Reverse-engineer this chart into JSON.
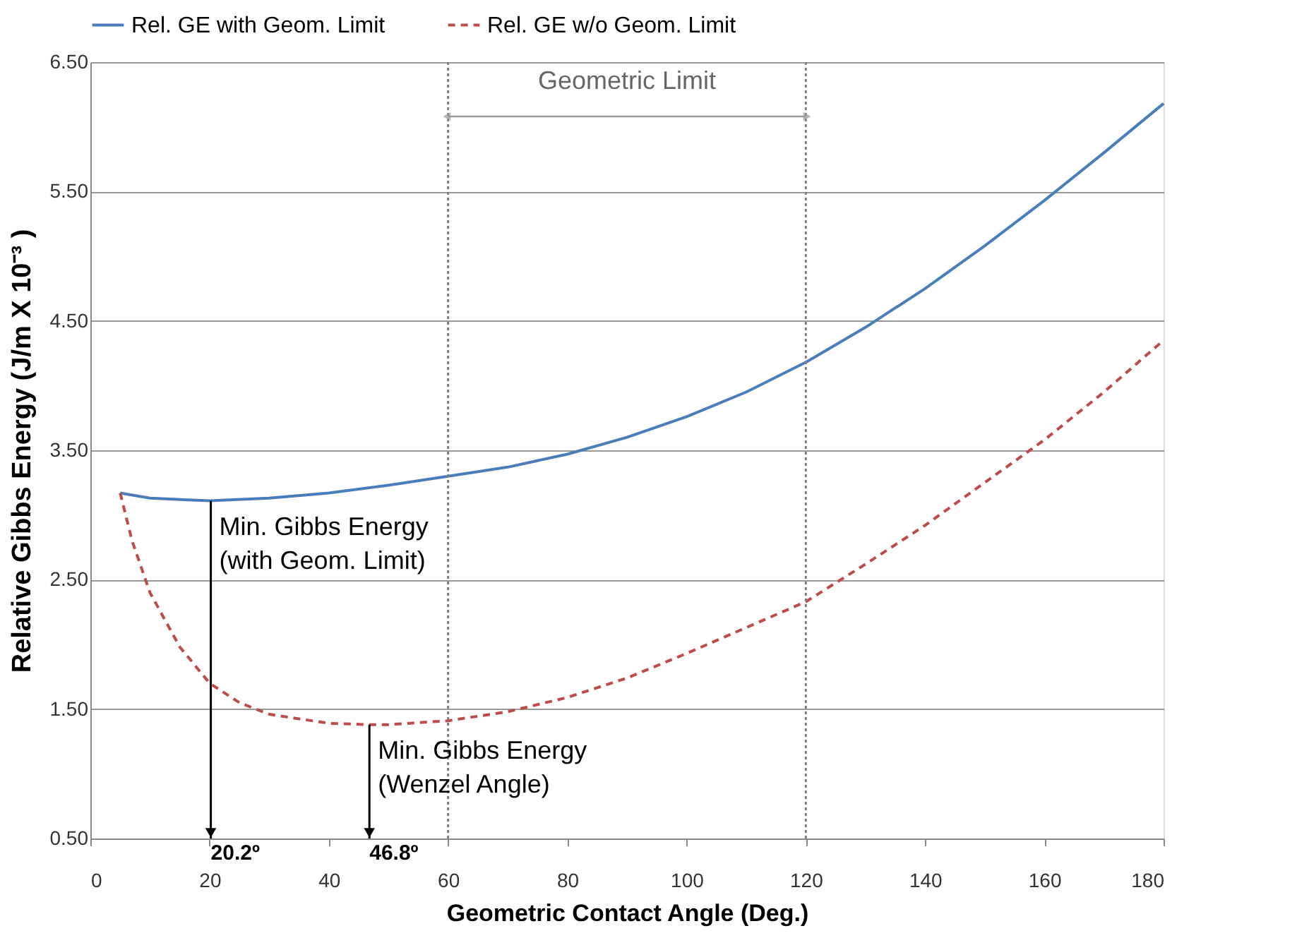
{
  "chart_data": {
    "type": "line",
    "xlabel": "Geometric Contact Angle (Deg.)",
    "ylabel": "Relative Gibbs Energy (J/m X 10⁻³ )",
    "xlim": [
      0,
      180
    ],
    "xticks": [
      0,
      20,
      40,
      60,
      80,
      100,
      120,
      140,
      160,
      180
    ],
    "ylim": [
      0.5,
      6.5
    ],
    "yticks": [
      {
        "value": 0.5,
        "label": "0.50"
      },
      {
        "value": 1.5,
        "label": "1.50"
      },
      {
        "value": 2.5,
        "label": "2.50"
      },
      {
        "value": 3.5,
        "label": "3.50"
      },
      {
        "value": 4.5,
        "label": "4.50"
      },
      {
        "value": 5.5,
        "label": "5.50"
      },
      {
        "value": 6.5,
        "label": "6.50"
      }
    ],
    "grid": "y",
    "legend": "top",
    "marker": "none",
    "series": [
      {
        "name": "Rel. GE with Geom. Limit",
        "color": "#4a7ebb",
        "line_style": "solid",
        "x": [
          5,
          10,
          20,
          30,
          40,
          50,
          60,
          70,
          80,
          90,
          100,
          110,
          120,
          130,
          140,
          150,
          160,
          170,
          180
        ],
        "values": [
          3.17,
          3.13,
          3.11,
          3.13,
          3.17,
          3.23,
          3.3,
          3.37,
          3.47,
          3.6,
          3.76,
          3.95,
          4.18,
          4.45,
          4.75,
          5.08,
          5.43,
          5.8,
          6.18
        ]
      },
      {
        "name": "Rel. GE w/o Geom. Limit",
        "color": "#be4b48",
        "line_style": "dashed",
        "x": [
          5,
          7,
          10,
          15,
          20,
          25,
          30,
          40,
          46.8,
          50,
          60,
          70,
          80,
          90,
          100,
          110,
          120,
          130,
          140,
          150,
          160,
          170,
          180
        ],
        "values": [
          3.17,
          2.8,
          2.4,
          1.98,
          1.7,
          1.55,
          1.46,
          1.39,
          1.38,
          1.38,
          1.41,
          1.48,
          1.59,
          1.74,
          1.93,
          2.13,
          2.33,
          2.62,
          2.92,
          3.25,
          3.58,
          3.95,
          4.35
        ]
      }
    ],
    "ref_lines": [
      {
        "axis": "x",
        "value": 60,
        "label": null,
        "color": "#7f7f7f",
        "line_style": "dotted"
      },
      {
        "axis": "x",
        "value": 120,
        "label": null,
        "color": "#7f7f7f",
        "line_style": "dotted"
      }
    ],
    "annotations": [
      "Geometric Limit",
      {
        "text": "Min. Gibbs Energy\n(with Geom. Limit)",
        "x": 20.2,
        "y": 3.11
      },
      {
        "text": "Min. Gibbs Energy\n(Wenzel Angle)",
        "x": 46.8,
        "y": 1.38
      },
      "20.2º",
      "46.8º"
    ]
  }
}
